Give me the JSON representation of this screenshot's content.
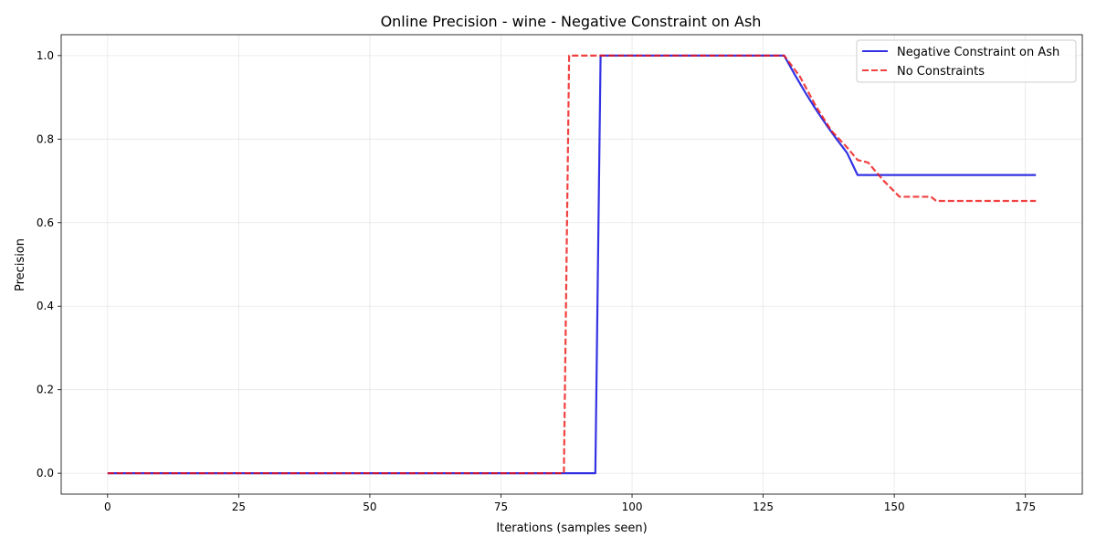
{
  "chart_data": {
    "type": "line",
    "title": "Online Precision - wine - Negative Constraint on Ash",
    "xlabel": "Iterations (samples seen)",
    "ylabel": "Precision",
    "xlim": [
      -8.85,
      185.85
    ],
    "ylim": [
      -0.05,
      1.05
    ],
    "xticks": [
      0,
      25,
      50,
      75,
      100,
      125,
      150,
      175
    ],
    "xtick_labels": [
      "0",
      "25",
      "50",
      "75",
      "100",
      "125",
      "150",
      "175"
    ],
    "yticks": [
      0.0,
      0.2,
      0.4,
      0.6,
      0.8,
      1.0
    ],
    "ytick_labels": [
      "0.0",
      "0.2",
      "0.4",
      "0.6",
      "0.8",
      "1.0"
    ],
    "grid": true,
    "legend_position": "top-right",
    "series": [
      {
        "name": "Negative Constraint on Ash",
        "color": "#0000dd",
        "style": "solid",
        "points": [
          [
            0,
            0.0
          ],
          [
            93,
            0.0
          ],
          [
            94,
            1.0
          ],
          [
            129,
            1.0
          ],
          [
            131,
            0.955
          ],
          [
            133,
            0.912
          ],
          [
            135,
            0.872
          ],
          [
            137,
            0.835
          ],
          [
            139,
            0.8
          ],
          [
            141,
            0.767
          ],
          [
            143,
            0.714
          ],
          [
            177,
            0.714
          ]
        ]
      },
      {
        "name": "No Constraints",
        "color": "#ee1111",
        "style": "dashed",
        "points": [
          [
            0,
            0.0
          ],
          [
            87,
            0.0
          ],
          [
            88,
            1.0
          ],
          [
            129,
            1.0
          ],
          [
            132,
            0.95
          ],
          [
            135,
            0.88
          ],
          [
            138,
            0.82
          ],
          [
            141,
            0.78
          ],
          [
            143,
            0.75
          ],
          [
            145,
            0.744
          ],
          [
            148,
            0.7
          ],
          [
            151,
            0.662
          ],
          [
            157,
            0.662
          ],
          [
            158,
            0.652
          ],
          [
            177,
            0.652
          ]
        ]
      }
    ]
  }
}
